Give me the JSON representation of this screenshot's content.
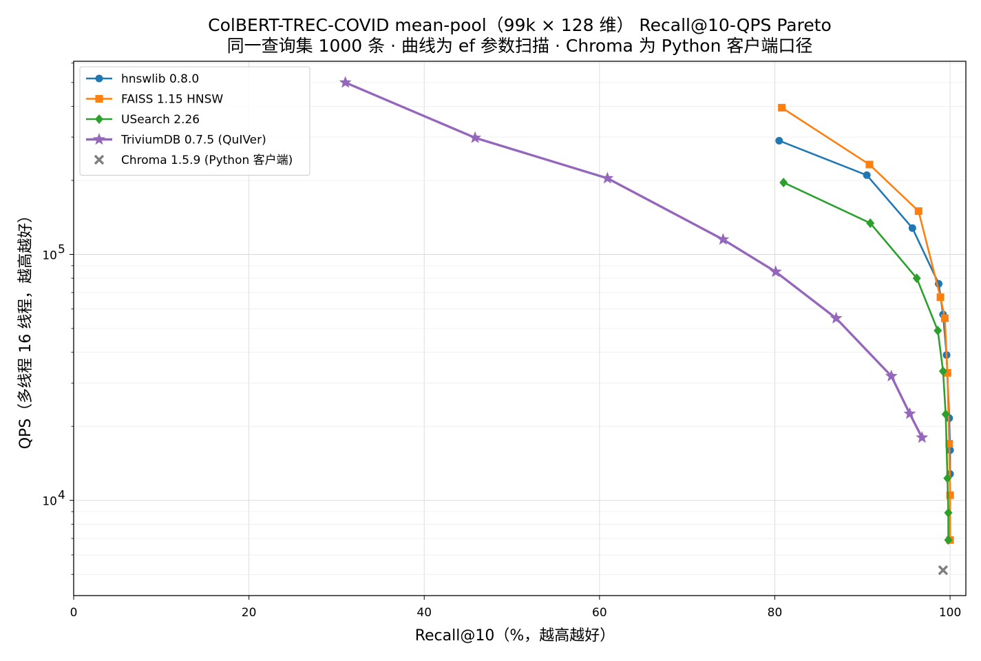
{
  "chart_data": {
    "type": "line",
    "title": "ColBERT-TREC-COVID mean-pool（99k × 128 维） Recall@10-QPS Pareto",
    "subtitle": "同一查询集 1000 条 · 曲线为 ef 参数扫描 · Chroma 为 Python 客户端口径",
    "xlabel": "Recall@10（%，越高越好）",
    "ylabel": "QPS（多线程 16 线程，越高越好）",
    "xlim": [
      0,
      101.8
    ],
    "ylim": [
      4100,
      610000
    ],
    "yscale": "log",
    "grid": true,
    "legend_position": "top-left",
    "x_ticks": [
      "0",
      "20",
      "40",
      "60",
      "80",
      "100"
    ],
    "y_ticks": [
      {
        "base": "10",
        "exp": "4"
      },
      {
        "base": "10",
        "exp": "5"
      }
    ],
    "series": [
      {
        "name": "hnswlib 0.8.0",
        "color": "#1f77b4",
        "marker": "circle",
        "x": [
          80.5,
          90.5,
          95.7,
          98.7,
          99.2,
          99.6,
          99.9,
          100.0,
          100.0
        ],
        "y": [
          290000,
          210000,
          128000,
          76000,
          57000,
          39000,
          21600,
          16000,
          12800
        ]
      },
      {
        "name": "FAISS 1.15 HNSW",
        "color": "#ff7f0e",
        "marker": "square",
        "x": [
          80.8,
          90.8,
          96.4,
          98.9,
          99.4,
          99.7,
          99.9,
          100.0,
          100.0
        ],
        "y": [
          395000,
          232000,
          150000,
          67000,
          55000,
          33000,
          17000,
          10500,
          6900
        ]
      },
      {
        "name": "USearch 2.26",
        "color": "#2ca02c",
        "marker": "diamond",
        "x": [
          81.0,
          90.9,
          96.2,
          98.6,
          99.2,
          99.5,
          99.7,
          99.8,
          99.8
        ],
        "y": [
          196000,
          134000,
          80000,
          49000,
          33500,
          22400,
          12300,
          8900,
          6900
        ]
      },
      {
        "name": "TriviumDB 0.7.5 (QuIVer)",
        "color": "#9467bd",
        "marker": "star",
        "x": [
          31.0,
          45.8,
          60.9,
          74.1,
          80.1,
          87.0,
          93.3,
          95.4,
          96.8
        ],
        "y": [
          500000,
          298000,
          204000,
          115000,
          85000,
          55000,
          32000,
          22500,
          18000
        ]
      },
      {
        "name": "Chroma 1.5.9 (Python 客户端)",
        "color": "#7f7f7f",
        "marker": "x",
        "scatter": true,
        "x": [
          99.2
        ],
        "y": [
          5200
        ]
      }
    ]
  }
}
